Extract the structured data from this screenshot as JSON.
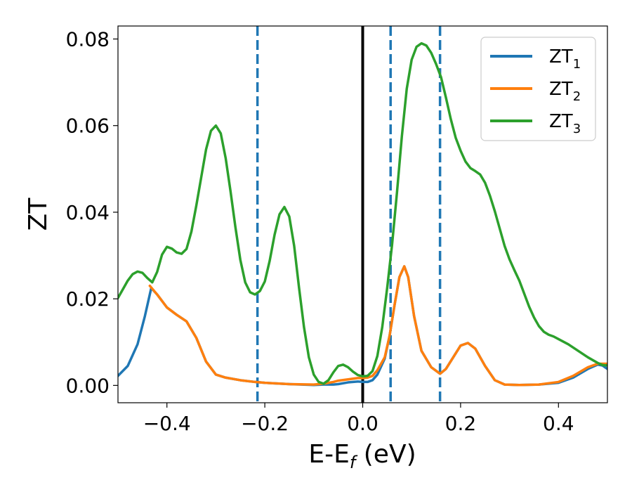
{
  "chart_data": {
    "type": "line",
    "xlabel": "E-E",
    "xlabel_sub": "f",
    "xlabel_unit": " (eV)",
    "ylabel": "ZT",
    "xlim": [
      -0.5,
      0.5
    ],
    "ylim": [
      -0.004,
      0.083
    ],
    "xticks": [
      -0.4,
      -0.2,
      0.0,
      0.2,
      0.4
    ],
    "xtick_labels": [
      "−0.4",
      "−0.2",
      "0.0",
      "0.2",
      "0.4"
    ],
    "yticks": [
      0.0,
      0.02,
      0.04,
      0.06,
      0.08
    ],
    "ytick_labels": [
      "0.00",
      "0.02",
      "0.04",
      "0.06",
      "0.08"
    ],
    "grid": false,
    "legend_placement": "top-right",
    "vlines": [
      {
        "x": 0.0,
        "style": "solid",
        "color": "#000000"
      },
      {
        "x": -0.215,
        "style": "dashed",
        "color": "#1f77b4"
      },
      {
        "x": 0.057,
        "style": "dashed",
        "color": "#1f77b4"
      },
      {
        "x": 0.158,
        "style": "dashed",
        "color": "#1f77b4"
      }
    ],
    "series": [
      {
        "name": "ZT",
        "sub": "1",
        "color": "#1f77b4",
        "points": [
          [
            -0.5,
            0.0022
          ],
          [
            -0.48,
            0.0045
          ],
          [
            -0.46,
            0.0095
          ],
          [
            -0.445,
            0.016
          ],
          [
            -0.432,
            0.0225
          ],
          [
            -0.42,
            0.021
          ],
          [
            -0.4,
            0.018
          ],
          [
            -0.38,
            0.0163
          ],
          [
            -0.36,
            0.0148
          ],
          [
            -0.34,
            0.011
          ],
          [
            -0.32,
            0.0055
          ],
          [
            -0.3,
            0.0025
          ],
          [
            -0.28,
            0.0018
          ],
          [
            -0.25,
            0.0012
          ],
          [
            -0.22,
            0.0008
          ],
          [
            -0.2,
            0.0006
          ],
          [
            -0.15,
            0.0003
          ],
          [
            -0.1,
            0.0001
          ],
          [
            -0.08,
            0.0002
          ],
          [
            -0.06,
            0.0002
          ],
          [
            -0.05,
            0.0003
          ],
          [
            -0.03,
            0.0007
          ],
          [
            -0.01,
            0.0009
          ],
          [
            0.0,
            0.0008
          ],
          [
            0.01,
            0.0008
          ],
          [
            0.02,
            0.0012
          ],
          [
            0.03,
            0.0025
          ],
          [
            0.045,
            0.0062
          ],
          [
            0.055,
            0.0115
          ],
          [
            0.065,
            0.0185
          ],
          [
            0.075,
            0.025
          ],
          [
            0.085,
            0.0275
          ],
          [
            0.093,
            0.025
          ],
          [
            0.105,
            0.016
          ],
          [
            0.12,
            0.008
          ],
          [
            0.14,
            0.0042
          ],
          [
            0.158,
            0.0027
          ],
          [
            0.17,
            0.0038
          ],
          [
            0.185,
            0.0065
          ],
          [
            0.2,
            0.0092
          ],
          [
            0.215,
            0.0098
          ],
          [
            0.23,
            0.0085
          ],
          [
            0.25,
            0.0045
          ],
          [
            0.27,
            0.0012
          ],
          [
            0.29,
            0.0002
          ],
          [
            0.32,
            0.0001
          ],
          [
            0.36,
            0.0002
          ],
          [
            0.4,
            0.0006
          ],
          [
            0.43,
            0.0018
          ],
          [
            0.46,
            0.0038
          ],
          [
            0.48,
            0.0048
          ],
          [
            0.49,
            0.0046
          ],
          [
            0.5,
            0.0038
          ]
        ]
      },
      {
        "name": "ZT",
        "sub": "2",
        "color": "#ff7f0e",
        "points": [
          [
            -0.435,
            0.023
          ],
          [
            -0.42,
            0.021
          ],
          [
            -0.4,
            0.018
          ],
          [
            -0.38,
            0.0163
          ],
          [
            -0.36,
            0.0148
          ],
          [
            -0.34,
            0.011
          ],
          [
            -0.32,
            0.0055
          ],
          [
            -0.3,
            0.0025
          ],
          [
            -0.28,
            0.0018
          ],
          [
            -0.25,
            0.0012
          ],
          [
            -0.22,
            0.0008
          ],
          [
            -0.2,
            0.0006
          ],
          [
            -0.15,
            0.0003
          ],
          [
            -0.1,
            0.0002
          ],
          [
            -0.08,
            0.0004
          ],
          [
            -0.06,
            0.0008
          ],
          [
            -0.05,
            0.0011
          ],
          [
            -0.03,
            0.0014
          ],
          [
            -0.01,
            0.0017
          ],
          [
            0.0,
            0.0017
          ],
          [
            0.01,
            0.0018
          ],
          [
            0.02,
            0.0022
          ],
          [
            0.03,
            0.0035
          ],
          [
            0.045,
            0.0065
          ],
          [
            0.055,
            0.0115
          ],
          [
            0.065,
            0.0185
          ],
          [
            0.075,
            0.025
          ],
          [
            0.085,
            0.0275
          ],
          [
            0.093,
            0.025
          ],
          [
            0.105,
            0.016
          ],
          [
            0.12,
            0.008
          ],
          [
            0.14,
            0.0042
          ],
          [
            0.158,
            0.0027
          ],
          [
            0.17,
            0.0038
          ],
          [
            0.185,
            0.0065
          ],
          [
            0.2,
            0.0092
          ],
          [
            0.215,
            0.0098
          ],
          [
            0.23,
            0.0085
          ],
          [
            0.25,
            0.0045
          ],
          [
            0.27,
            0.0012
          ],
          [
            0.29,
            0.0002
          ],
          [
            0.32,
            0.0001
          ],
          [
            0.36,
            0.0002
          ],
          [
            0.4,
            0.0008
          ],
          [
            0.43,
            0.0022
          ],
          [
            0.46,
            0.0042
          ],
          [
            0.48,
            0.005
          ],
          [
            0.5,
            0.005
          ]
        ]
      },
      {
        "name": "ZT",
        "sub": "3",
        "color": "#2ca02c",
        "points": [
          [
            -0.5,
            0.0202
          ],
          [
            -0.49,
            0.0222
          ],
          [
            -0.48,
            0.0242
          ],
          [
            -0.47,
            0.0257
          ],
          [
            -0.46,
            0.0263
          ],
          [
            -0.45,
            0.026
          ],
          [
            -0.44,
            0.0248
          ],
          [
            -0.43,
            0.0238
          ],
          [
            -0.42,
            0.0262
          ],
          [
            -0.41,
            0.0302
          ],
          [
            -0.4,
            0.032
          ],
          [
            -0.39,
            0.0316
          ],
          [
            -0.38,
            0.0307
          ],
          [
            -0.37,
            0.0304
          ],
          [
            -0.36,
            0.0315
          ],
          [
            -0.35,
            0.0355
          ],
          [
            -0.34,
            0.0415
          ],
          [
            -0.33,
            0.048
          ],
          [
            -0.32,
            0.0545
          ],
          [
            -0.31,
            0.0588
          ],
          [
            -0.3,
            0.06
          ],
          [
            -0.29,
            0.0582
          ],
          [
            -0.28,
            0.0525
          ],
          [
            -0.27,
            0.0448
          ],
          [
            -0.26,
            0.0365
          ],
          [
            -0.25,
            0.029
          ],
          [
            -0.24,
            0.0238
          ],
          [
            -0.23,
            0.0215
          ],
          [
            -0.22,
            0.021
          ],
          [
            -0.21,
            0.0218
          ],
          [
            -0.2,
            0.024
          ],
          [
            -0.19,
            0.0288
          ],
          [
            -0.18,
            0.0348
          ],
          [
            -0.17,
            0.0395
          ],
          [
            -0.16,
            0.0412
          ],
          [
            -0.15,
            0.039
          ],
          [
            -0.14,
            0.0322
          ],
          [
            -0.13,
            0.0225
          ],
          [
            -0.12,
            0.0135
          ],
          [
            -0.11,
            0.0065
          ],
          [
            -0.1,
            0.0025
          ],
          [
            -0.09,
            0.0008
          ],
          [
            -0.08,
            0.0004
          ],
          [
            -0.07,
            0.0012
          ],
          [
            -0.06,
            0.003
          ],
          [
            -0.05,
            0.0045
          ],
          [
            -0.04,
            0.0048
          ],
          [
            -0.03,
            0.0042
          ],
          [
            -0.02,
            0.0032
          ],
          [
            -0.01,
            0.0024
          ],
          [
            0.0,
            0.0021
          ],
          [
            0.01,
            0.0022
          ],
          [
            0.02,
            0.0033
          ],
          [
            0.03,
            0.0068
          ],
          [
            0.04,
            0.0135
          ],
          [
            0.05,
            0.0225
          ],
          [
            0.06,
            0.0325
          ],
          [
            0.07,
            0.0445
          ],
          [
            0.08,
            0.0575
          ],
          [
            0.09,
            0.0685
          ],
          [
            0.1,
            0.0752
          ],
          [
            0.11,
            0.0782
          ],
          [
            0.12,
            0.079
          ],
          [
            0.13,
            0.0785
          ],
          [
            0.14,
            0.0768
          ],
          [
            0.15,
            0.0742
          ],
          [
            0.16,
            0.0712
          ],
          [
            0.17,
            0.0665
          ],
          [
            0.18,
            0.0615
          ],
          [
            0.19,
            0.0572
          ],
          [
            0.2,
            0.0542
          ],
          [
            0.21,
            0.0517
          ],
          [
            0.22,
            0.0502
          ],
          [
            0.23,
            0.0495
          ],
          [
            0.24,
            0.0487
          ],
          [
            0.25,
            0.0468
          ],
          [
            0.26,
            0.0438
          ],
          [
            0.27,
            0.0402
          ],
          [
            0.28,
            0.0362
          ],
          [
            0.29,
            0.0322
          ],
          [
            0.3,
            0.0291
          ],
          [
            0.31,
            0.0266
          ],
          [
            0.32,
            0.0242
          ],
          [
            0.33,
            0.0212
          ],
          [
            0.34,
            0.0182
          ],
          [
            0.35,
            0.0157
          ],
          [
            0.36,
            0.0137
          ],
          [
            0.37,
            0.0124
          ],
          [
            0.38,
            0.0117
          ],
          [
            0.39,
            0.0113
          ],
          [
            0.4,
            0.0107
          ],
          [
            0.42,
            0.0095
          ],
          [
            0.44,
            0.008
          ],
          [
            0.46,
            0.0065
          ],
          [
            0.48,
            0.0052
          ],
          [
            0.49,
            0.0047
          ],
          [
            0.5,
            0.0046
          ]
        ]
      }
    ]
  }
}
